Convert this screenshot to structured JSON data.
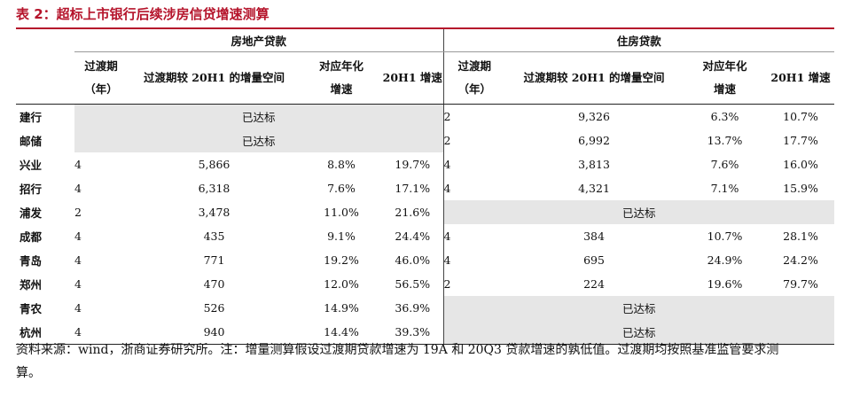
{
  "title": "表 2：超标上市银行后续涉房信贷增速测算",
  "groups": {
    "real_estate": "房地产贷款",
    "mortgage": "住房贷款"
  },
  "columns": {
    "period_line1": "过渡期",
    "period_line2": "（年）",
    "space": "过渡期较 20H1 的增量空间",
    "annual_line1": "对应年化",
    "annual_line2": "增速",
    "growth": "20H1 增速"
  },
  "rows": [
    {
      "bank": "建行",
      "re": {
        "merged": "已达标"
      },
      "mg": {
        "period": "2",
        "space": "9,326",
        "annual": "6.3%",
        "growth": "10.7%"
      }
    },
    {
      "bank": "邮储",
      "re": {
        "merged": "已达标"
      },
      "mg": {
        "period": "2",
        "space": "6,992",
        "annual": "13.7%",
        "growth": "17.7%"
      }
    },
    {
      "bank": "兴业",
      "re": {
        "period": "4",
        "space": "5,866",
        "annual": "8.8%",
        "growth": "19.7%"
      },
      "mg": {
        "period": "4",
        "space": "3,813",
        "annual": "7.6%",
        "growth": "16.0%"
      }
    },
    {
      "bank": "招行",
      "re": {
        "period": "4",
        "space": "6,318",
        "annual": "7.6%",
        "growth": "17.1%"
      },
      "mg": {
        "period": "4",
        "space": "4,321",
        "annual": "7.1%",
        "growth": "15.9%"
      }
    },
    {
      "bank": "浦发",
      "re": {
        "period": "2",
        "space": "3,478",
        "annual": "11.0%",
        "growth": "21.6%"
      },
      "mg": {
        "merged": "已达标"
      }
    },
    {
      "bank": "成都",
      "re": {
        "period": "4",
        "space": "435",
        "annual": "9.1%",
        "growth": "24.4%"
      },
      "mg": {
        "period": "4",
        "space": "384",
        "annual": "10.7%",
        "growth": "28.1%"
      }
    },
    {
      "bank": "青岛",
      "re": {
        "period": "4",
        "space": "771",
        "annual": "19.2%",
        "growth": "46.0%"
      },
      "mg": {
        "period": "4",
        "space": "695",
        "annual": "24.9%",
        "growth": "24.2%"
      }
    },
    {
      "bank": "郑州",
      "re": {
        "period": "4",
        "space": "470",
        "annual": "12.0%",
        "growth": "56.5%"
      },
      "mg": {
        "period": "2",
        "space": "224",
        "annual": "19.6%",
        "growth": "79.7%"
      }
    },
    {
      "bank": "青农",
      "re": {
        "period": "4",
        "space": "526",
        "annual": "14.9%",
        "growth": "36.9%"
      },
      "mg": {
        "merged": "已达标"
      }
    },
    {
      "bank": "杭州",
      "re": {
        "period": "4",
        "space": "940",
        "annual": "14.4%",
        "growth": "39.3%"
      },
      "mg": {
        "merged": "已达标"
      }
    }
  ],
  "note_line1": "资料来源：wind，浙商证券研究所。注：增量测算假设过渡期贷款增速为 19A 和 20Q3 贷款增速的孰低值。过渡期均按照基准监管要求测",
  "note_line2": "算。"
}
